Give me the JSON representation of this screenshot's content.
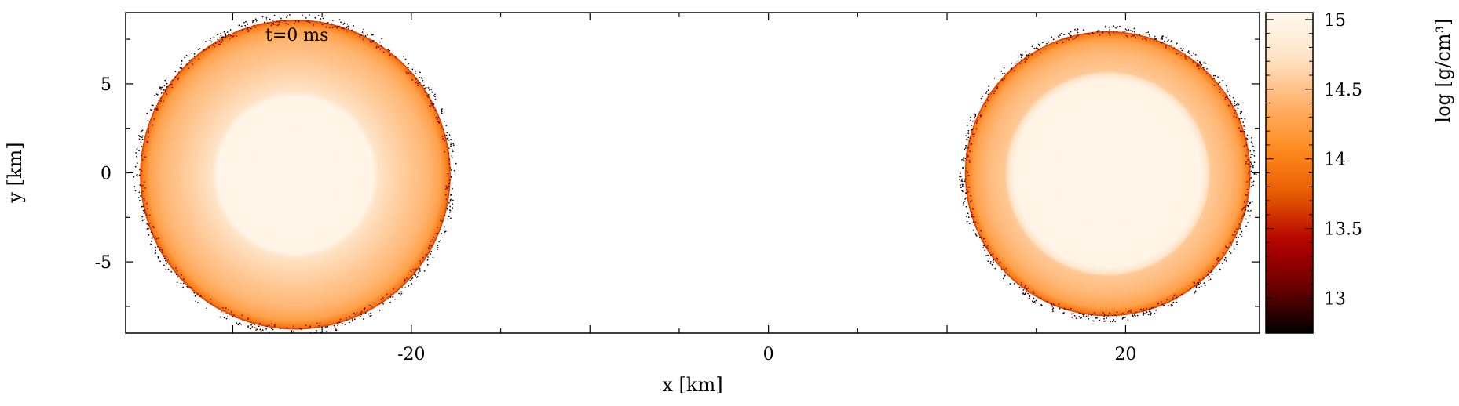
{
  "chart_data": {
    "type": "scatter",
    "annotation": "t=0 ms",
    "xlabel": "x [km]",
    "ylabel": "y [km]",
    "xlim": [
      -36,
      27.5
    ],
    "ylim": [
      -9,
      9
    ],
    "xticks": [
      -20,
      0,
      20
    ],
    "yticks": [
      -5,
      0,
      5
    ],
    "colorbar": {
      "label": "log  [g/cm³]",
      "range": [
        12.75,
        15.05
      ],
      "ticks": [
        13,
        13.5,
        14,
        14.5,
        15
      ],
      "colormap": [
        "#000000",
        "#6b0000",
        "#b30000",
        "#e55a00",
        "#ff8a1e",
        "#ffb26b",
        "#ffe3c6",
        "#fff8ef"
      ]
    },
    "stars": [
      {
        "name": "star-left",
        "center": [
          -26.5,
          -0.1
        ],
        "radius_km": 8.7,
        "core_radius_km": 4.6,
        "core_log_density": 15.0,
        "surface_log_density": 13.6
      },
      {
        "name": "star-right",
        "center": [
          19.0,
          -0.05
        ],
        "radius_km": 8.0,
        "core_radius_km": 5.5,
        "core_log_density": 15.0,
        "surface_log_density": 13.6
      }
    ],
    "grid": false,
    "legend": "none"
  }
}
